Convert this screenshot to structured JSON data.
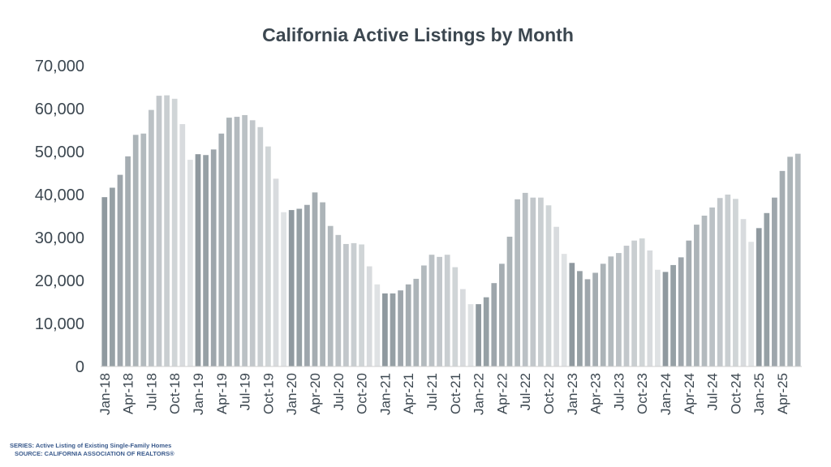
{
  "chart_data": {
    "type": "bar",
    "title": "California Active Listings by Month",
    "xlabel": "",
    "ylabel": "",
    "ylim": [
      0,
      70000
    ],
    "yticks": [
      "0",
      "10,000",
      "20,000",
      "30,000",
      "40,000",
      "50,000",
      "60,000",
      "70,000"
    ],
    "grid": false,
    "legend": "none",
    "tick_labels": [
      "Jan-18",
      "Apr-18",
      "Jul-18",
      "Oct-18",
      "Jan-19",
      "Apr-19",
      "Jul-19",
      "Oct-19",
      "Jan-20",
      "Apr-20",
      "Jul-20",
      "Oct-20",
      "Jan-21",
      "Apr-21",
      "Jul-21",
      "Oct-21",
      "Jan-22",
      "Apr-22",
      "Jul-22",
      "Oct-22",
      "Jan-23",
      "Apr-23",
      "Jul-23",
      "Oct-23",
      "Jan-24",
      "Apr-24",
      "Jul-24",
      "Oct-24",
      "Jan-25",
      "Apr-25"
    ],
    "categories": [
      "Jan-18",
      "Feb-18",
      "Mar-18",
      "Apr-18",
      "May-18",
      "Jun-18",
      "Jul-18",
      "Aug-18",
      "Sep-18",
      "Oct-18",
      "Nov-18",
      "Dec-18",
      "Jan-19",
      "Feb-19",
      "Mar-19",
      "Apr-19",
      "May-19",
      "Jun-19",
      "Jul-19",
      "Aug-19",
      "Sep-19",
      "Oct-19",
      "Nov-19",
      "Dec-19",
      "Jan-20",
      "Feb-20",
      "Mar-20",
      "Apr-20",
      "May-20",
      "Jun-20",
      "Jul-20",
      "Aug-20",
      "Sep-20",
      "Oct-20",
      "Nov-20",
      "Dec-20",
      "Jan-21",
      "Feb-21",
      "Mar-21",
      "Apr-21",
      "May-21",
      "Jun-21",
      "Jul-21",
      "Aug-21",
      "Sep-21",
      "Oct-21",
      "Nov-21",
      "Dec-21",
      "Jan-22",
      "Feb-22",
      "Mar-22",
      "Apr-22",
      "May-22",
      "Jun-22",
      "Jul-22",
      "Aug-22",
      "Sep-22",
      "Oct-22",
      "Nov-22",
      "Dec-22",
      "Jan-23",
      "Feb-23",
      "Mar-23",
      "Apr-23",
      "May-23",
      "Jun-23",
      "Jul-23",
      "Aug-23",
      "Sep-23",
      "Oct-23",
      "Nov-23",
      "Dec-23",
      "Jan-24",
      "Feb-24",
      "Mar-24",
      "Apr-24",
      "May-24",
      "Jun-24",
      "Jul-24",
      "Aug-24",
      "Sep-24",
      "Oct-24",
      "Nov-24",
      "Dec-24",
      "Jan-25",
      "Feb-25",
      "Mar-25",
      "Apr-25",
      "May-25",
      "Jun-25"
    ],
    "values": [
      39400,
      41600,
      44600,
      48900,
      53900,
      54200,
      59700,
      63000,
      63100,
      62300,
      56400,
      48100,
      49400,
      49200,
      50500,
      54200,
      57900,
      58100,
      58500,
      57300,
      55700,
      51200,
      43700,
      35900,
      36400,
      36700,
      37600,
      40500,
      38200,
      32700,
      30600,
      28500,
      28700,
      28400,
      23300,
      19100,
      17000,
      17000,
      17700,
      19100,
      20400,
      23500,
      26000,
      25500,
      26000,
      23100,
      18000,
      14500,
      14500,
      16100,
      19400,
      23900,
      30200,
      38900,
      40400,
      39300,
      39300,
      37500,
      32500,
      26200,
      24100,
      22200,
      20300,
      21800,
      23900,
      25600,
      26400,
      28100,
      29300,
      29800,
      27000,
      22500,
      22000,
      23600,
      25400,
      29300,
      33000,
      35100,
      37000,
      39200,
      40000,
      39000,
      34300,
      29000,
      32200,
      35700,
      39300,
      45500,
      48800,
      49500
    ],
    "bar_shades": [
      "#8f999f",
      "#dfe2e4"
    ]
  },
  "footnotes": {
    "series": "SERIES: Active Listing of Existing Single-Family Homes",
    "source": "SOURCE: CALIFORNIA ASSOCIATION OF REALTORS®"
  }
}
